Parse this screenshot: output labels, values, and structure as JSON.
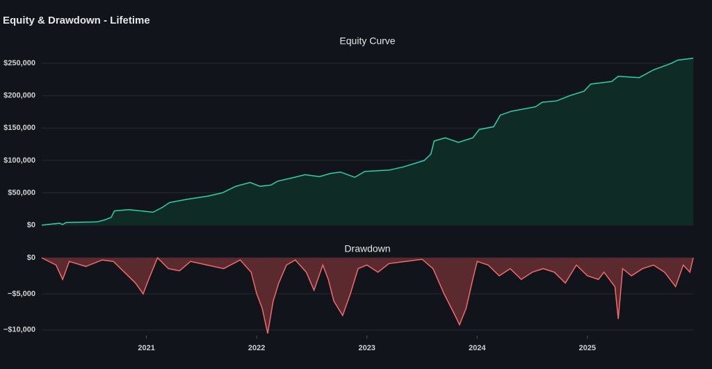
{
  "title": "Equity & Drawdown - Lifetime",
  "chart_data": [
    {
      "type": "area",
      "title": "Equity Curve",
      "color": "#2fd3a8",
      "fill": "#0f2b26",
      "grid": true,
      "x": [
        2020.05,
        2020.21,
        2020.24,
        2020.27,
        2020.55,
        2020.62,
        2020.68,
        2020.71,
        2020.84,
        2021.06,
        2021.15,
        2021.21,
        2021.37,
        2021.56,
        2021.69,
        2021.81,
        2021.94,
        2022.03,
        2022.13,
        2022.19,
        2022.32,
        2022.44,
        2022.57,
        2022.67,
        2022.76,
        2022.89,
        2022.98,
        2023.2,
        2023.33,
        2023.52,
        2023.58,
        2023.61,
        2023.71,
        2023.83,
        2023.96,
        2024.02,
        2024.15,
        2024.21,
        2024.31,
        2024.53,
        2024.59,
        2024.72,
        2024.84,
        2024.97,
        2025.03,
        2025.22,
        2025.28,
        2025.47,
        2025.6,
        2025.76,
        2025.82,
        2025.96
      ],
      "values": [
        0,
        3000,
        1000,
        4000,
        5000,
        8000,
        12000,
        22000,
        24000,
        20000,
        28000,
        35000,
        40000,
        45000,
        50000,
        60000,
        66000,
        60000,
        62000,
        68000,
        73000,
        78000,
        75000,
        80000,
        82000,
        74000,
        83000,
        85000,
        90000,
        100000,
        110000,
        130000,
        135000,
        128000,
        135000,
        148000,
        152000,
        170000,
        176000,
        183000,
        190000,
        192000,
        200000,
        207000,
        218000,
        222000,
        230000,
        228000,
        240000,
        250000,
        255000,
        258000
      ],
      "xlim": [
        2020.05,
        2025.96
      ],
      "ylim": [
        0,
        262000
      ],
      "yticks": [
        {
          "value": 0,
          "label": "$0"
        },
        {
          "value": 50000,
          "label": "$50,000"
        },
        {
          "value": 100000,
          "label": "$100,000"
        },
        {
          "value": 150000,
          "label": "$150,000"
        },
        {
          "value": 200000,
          "label": "$200,000"
        },
        {
          "value": 250000,
          "label": "$250,000"
        }
      ]
    },
    {
      "type": "area",
      "title": "Drawdown",
      "color": "#f26b6b",
      "fill": "#5a2a2f",
      "grid": true,
      "x": [
        2020.05,
        2020.18,
        2020.24,
        2020.3,
        2020.45,
        2020.6,
        2020.7,
        2020.8,
        2020.9,
        2020.97,
        2021.02,
        2021.1,
        2021.2,
        2021.3,
        2021.4,
        2021.55,
        2021.7,
        2021.85,
        2021.95,
        2022.0,
        2022.05,
        2022.1,
        2022.15,
        2022.2,
        2022.27,
        2022.35,
        2022.45,
        2022.52,
        2022.6,
        2022.65,
        2022.7,
        2022.78,
        2022.85,
        2022.92,
        2023.0,
        2023.1,
        2023.2,
        2023.35,
        2023.5,
        2023.6,
        2023.7,
        2023.8,
        2023.84,
        2023.9,
        2023.96,
        2024.0,
        2024.1,
        2024.2,
        2024.3,
        2024.4,
        2024.5,
        2024.6,
        2024.7,
        2024.8,
        2024.9,
        2025.0,
        2025.1,
        2025.15,
        2025.25,
        2025.28,
        2025.32,
        2025.4,
        2025.5,
        2025.6,
        2025.7,
        2025.8,
        2025.87,
        2025.93,
        2025.96
      ],
      "values": [
        0,
        -1000,
        -3000,
        -500,
        -1200,
        -300,
        -500,
        -2000,
        -3500,
        -5000,
        -3000,
        0,
        -1500,
        -1800,
        -500,
        -1000,
        -1500,
        -300,
        -2000,
        -5000,
        -7000,
        -10500,
        -6000,
        -3500,
        -1000,
        -300,
        -2000,
        -4500,
        -1000,
        -3000,
        -6000,
        -8000,
        -5000,
        -1500,
        -1000,
        -2000,
        -800,
        -500,
        -200,
        -1500,
        -5000,
        -8000,
        -9300,
        -7000,
        -3000,
        -500,
        -1000,
        -2500,
        -1500,
        -3000,
        -2000,
        -1500,
        -2000,
        -3500,
        -1000,
        -2500,
        -3000,
        -2000,
        -4000,
        -8500,
        -1500,
        -2500,
        -1500,
        -1000,
        -2000,
        -4000,
        -1000,
        -2000,
        0
      ],
      "xlim": [
        2020.05,
        2025.96
      ],
      "ylim": [
        -10800,
        0
      ],
      "yticks": [
        {
          "value": 0,
          "label": "$0"
        },
        {
          "value": -5000,
          "label": "−$5,000"
        },
        {
          "value": -10000,
          "label": "−$10,000"
        }
      ],
      "xticks": [
        2021,
        2022,
        2023,
        2024,
        2025
      ]
    }
  ]
}
